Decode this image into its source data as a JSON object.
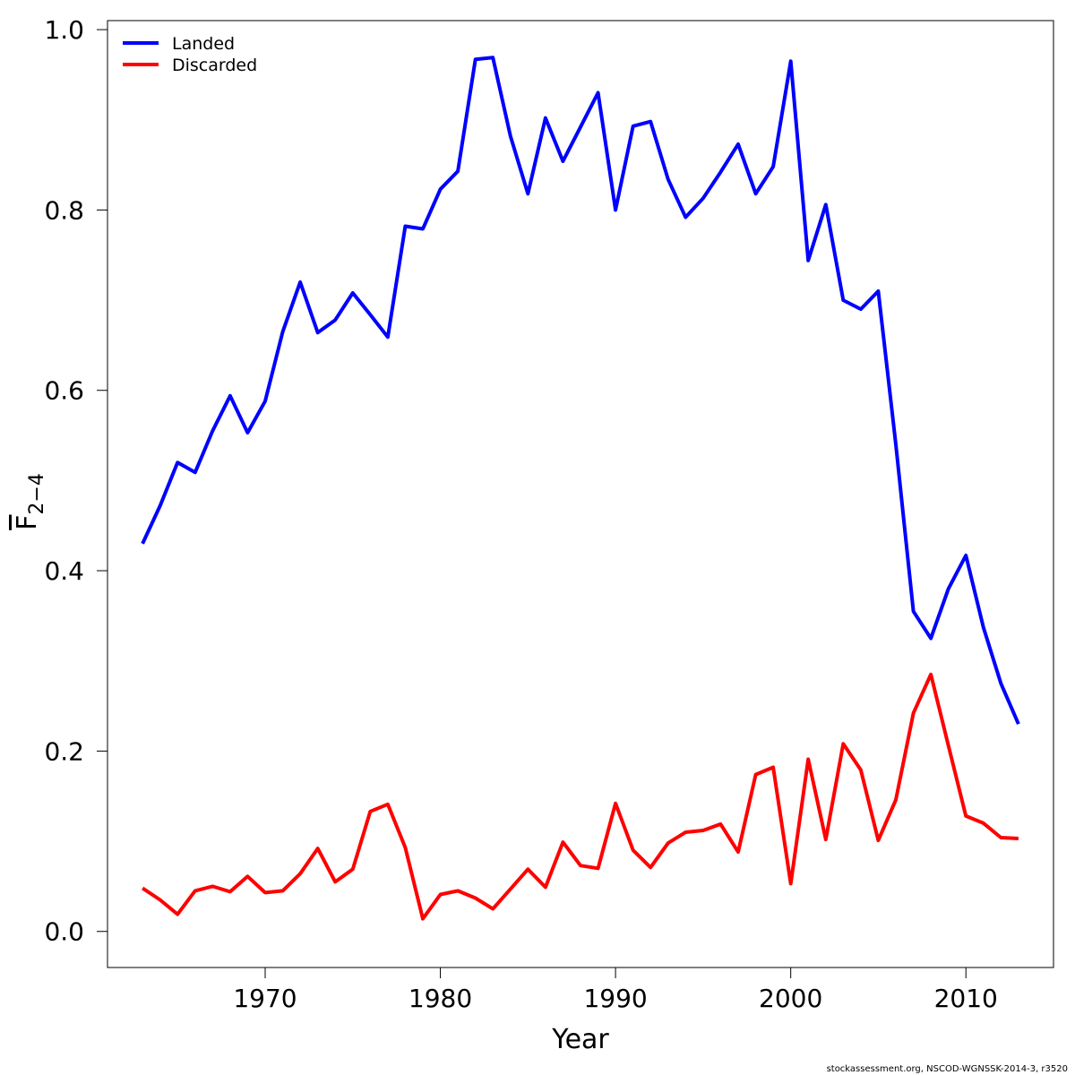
{
  "chart_data": {
    "type": "line",
    "xlabel": "Year",
    "ylabel_main": "F",
    "ylabel_subscript": "2−4",
    "xlim": [
      1961,
      2015
    ],
    "ylim": [
      -0.04,
      1.01
    ],
    "x_ticks": [
      1970,
      1980,
      1990,
      2000,
      2010
    ],
    "x_tick_labels": [
      "1970",
      "1980",
      "1990",
      "2000",
      "2010"
    ],
    "y_ticks": [
      0.0,
      0.2,
      0.4,
      0.6,
      0.8,
      1.0
    ],
    "y_tick_labels": [
      "0.0",
      "0.2",
      "0.4",
      "0.6",
      "0.8",
      "1.0"
    ],
    "grid": false,
    "legend_position": "top-left",
    "x": [
      1963,
      1964,
      1965,
      1966,
      1967,
      1968,
      1969,
      1970,
      1971,
      1972,
      1973,
      1974,
      1975,
      1976,
      1977,
      1978,
      1979,
      1980,
      1981,
      1982,
      1983,
      1984,
      1985,
      1986,
      1987,
      1988,
      1989,
      1990,
      1991,
      1992,
      1993,
      1994,
      1995,
      1996,
      1997,
      1998,
      1999,
      2000,
      2001,
      2002,
      2003,
      2004,
      2005,
      2006,
      2007,
      2008,
      2009,
      2010,
      2011,
      2012,
      2013
    ],
    "series": [
      {
        "name": "Landed",
        "color": "#0000ff",
        "values": [
          0.43,
          0.472,
          0.52,
          0.509,
          0.555,
          0.594,
          0.553,
          0.588,
          0.665,
          0.72,
          0.664,
          0.678,
          0.708,
          0.684,
          0.659,
          0.782,
          0.779,
          0.823,
          0.843,
          0.967,
          0.969,
          0.882,
          0.818,
          0.902,
          0.854,
          0.892,
          0.93,
          0.8,
          0.893,
          0.898,
          0.834,
          0.792,
          0.813,
          0.842,
          0.873,
          0.818,
          0.848,
          0.965,
          0.744,
          0.806,
          0.7,
          0.69,
          0.71,
          0.54,
          0.355,
          0.325,
          0.38,
          0.417,
          0.337,
          0.275,
          0.23
        ]
      },
      {
        "name": "Discarded",
        "color": "#ff0000",
        "values": [
          0.048,
          0.035,
          0.019,
          0.045,
          0.05,
          0.044,
          0.061,
          0.043,
          0.045,
          0.064,
          0.092,
          0.055,
          0.069,
          0.133,
          0.141,
          0.093,
          0.014,
          0.041,
          0.045,
          0.037,
          0.025,
          0.047,
          0.069,
          0.049,
          0.099,
          0.073,
          0.07,
          0.142,
          0.09,
          0.071,
          0.098,
          0.11,
          0.112,
          0.119,
          0.088,
          0.174,
          0.182,
          0.053,
          0.191,
          0.102,
          0.208,
          0.179,
          0.101,
          0.146,
          0.242,
          0.285,
          0.206,
          0.128,
          0.12,
          0.104,
          0.103
        ]
      }
    ]
  },
  "footer": "stockassessment.org, NSCOD-WGNSSK-2014-3, r3520"
}
